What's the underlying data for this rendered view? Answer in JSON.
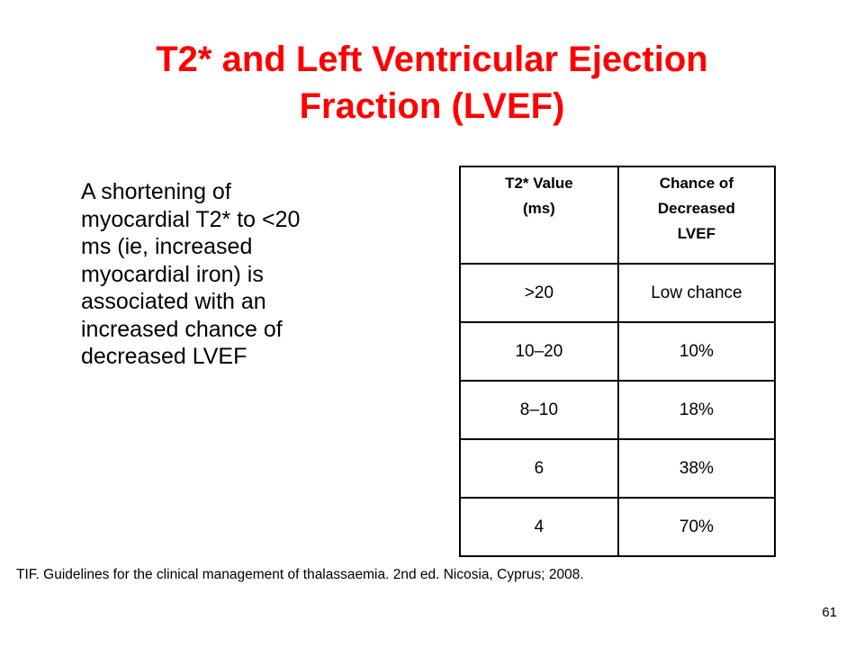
{
  "title": {
    "line1": "T2* and Left Ventricular Ejection",
    "line2": "Fraction (LVEF)"
  },
  "body_text": {
    "lines": [
      "A shortening of",
      "myocardial T2* to <20",
      "ms (ie, increased",
      "myocardial iron) is",
      "associated with an",
      "increased chance of",
      "decreased LVEF"
    ]
  },
  "table": {
    "headers": [
      [
        "T2* Value",
        "(ms)"
      ],
      [
        "Chance of",
        "Decreased",
        "LVEF"
      ]
    ],
    "rows": [
      [
        ">20",
        "Low chance"
      ],
      [
        "10–20",
        "10%"
      ],
      [
        "8–10",
        "18%"
      ],
      [
        "6",
        "38%"
      ],
      [
        "4",
        "70%"
      ]
    ]
  },
  "citation": "TIF. Guidelines for the clinical management of thalassaemia. 2nd ed. Nicosia, Cyprus; 2008.",
  "page_number": "61",
  "colors": {
    "title": "#ff0000",
    "text": "#000000",
    "background": "#ffffff"
  }
}
